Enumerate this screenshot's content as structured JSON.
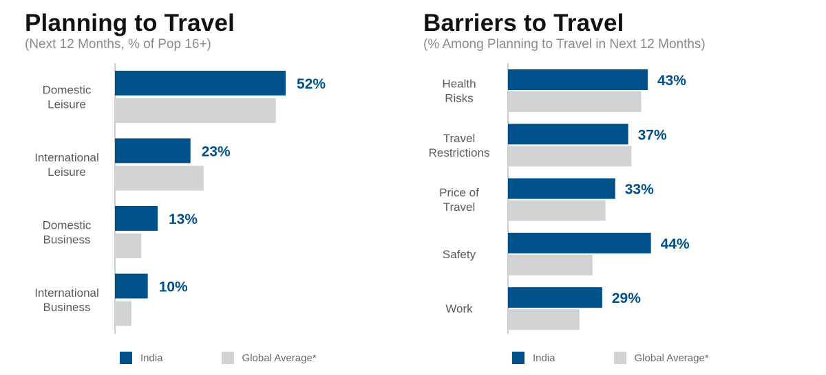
{
  "colors": {
    "india": "#00508a",
    "global": "#d1d2d4",
    "axis": "#9a9a9a"
  },
  "chart_data": [
    {
      "type": "bar",
      "orientation": "horizontal",
      "title": "Planning to Travel",
      "subtitle": "(Next 12 Months, % of Pop 16+)",
      "categories": [
        [
          "Domestic",
          "Leisure"
        ],
        [
          "International",
          "Leisure"
        ],
        [
          "Domestic",
          "Business"
        ],
        [
          "International",
          "Business"
        ]
      ],
      "series": [
        {
          "name": "India",
          "values": [
            52,
            23,
            13,
            10
          ],
          "value_labels": [
            "52%",
            "23%",
            "13%",
            "10%"
          ]
        },
        {
          "name": "Global Average*",
          "values": [
            49,
            27,
            8,
            5
          ]
        }
      ],
      "xlim": [
        0,
        60
      ],
      "grid": false,
      "legend_position": "bottom"
    },
    {
      "type": "bar",
      "orientation": "horizontal",
      "title": "Barriers to Travel",
      "subtitle": "(% Among Planning to Travel in Next 12 Months)",
      "categories": [
        [
          "Health",
          "Risks"
        ],
        [
          "Travel",
          "Restrictions"
        ],
        [
          "Price of",
          "Travel"
        ],
        [
          "Safety"
        ],
        [
          "Work"
        ]
      ],
      "series": [
        {
          "name": "India",
          "values": [
            43,
            37,
            33,
            44,
            29
          ],
          "value_labels": [
            "43%",
            "37%",
            "33%",
            "44%",
            "29%"
          ]
        },
        {
          "name": "Global Average*",
          "values": [
            41,
            38,
            30,
            26,
            22
          ]
        }
      ],
      "xlim": [
        0,
        60
      ],
      "grid": false,
      "legend_position": "bottom"
    }
  ]
}
